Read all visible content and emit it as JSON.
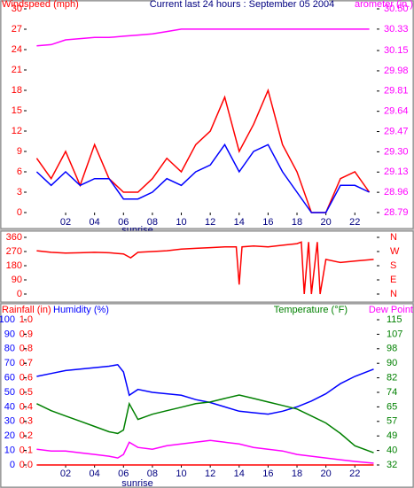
{
  "chart_data": [
    {
      "type": "line",
      "title": "Current last 24 hours : September 05 2004",
      "annotation": "sunrise",
      "xlim": [
        -0.7,
        23.7
      ],
      "xticks": [
        {
          "value": 2,
          "label": "02"
        },
        {
          "value": 4,
          "label": "04"
        },
        {
          "value": 6,
          "label": "06"
        },
        {
          "value": 8,
          "label": "08"
        },
        10,
        12,
        14,
        16,
        18,
        20,
        22
      ],
      "ylim": [
        0,
        30
      ],
      "yticks": [
        0,
        3,
        6,
        9,
        12,
        15,
        18,
        21,
        24,
        27,
        30
      ],
      "y2lim": [
        28.79,
        30.5
      ],
      "y2ticks": [
        28.79,
        28.96,
        29.13,
        {
          "value": 29.3,
          "label": "29.30"
        },
        29.47,
        29.64,
        29.81,
        29.98,
        30.15,
        30.33,
        {
          "value": 30.5,
          "label": "30.50"
        }
      ],
      "x": [
        0,
        1,
        2,
        3,
        4,
        5,
        6,
        7,
        8,
        9,
        10,
        11,
        12,
        13,
        14,
        15,
        16,
        17,
        18,
        19,
        20,
        21,
        22,
        23
      ],
      "series": [
        {
          "name": "Windspeed (mph)",
          "color": "#ff0000",
          "values": [
            8,
            5,
            9,
            4,
            10,
            5,
            3,
            3,
            5,
            8,
            6,
            10,
            12,
            17,
            9,
            13,
            18,
            10,
            6,
            0,
            0,
            5,
            6,
            3
          ]
        },
        {
          "color": "#0000ff",
          "values": [
            6,
            4,
            6,
            4,
            5,
            5,
            2,
            2,
            3,
            5,
            4,
            6,
            7,
            10,
            6,
            9,
            10,
            6,
            3,
            0,
            0,
            4,
            4,
            3
          ]
        },
        {
          "name": "arometer (in.)",
          "color": "#ff00ff",
          "axis": "y2",
          "values": [
            30.19,
            30.2,
            30.24,
            30.25,
            30.26,
            30.26,
            30.27,
            30.28,
            30.29,
            30.31,
            30.33,
            30.33,
            30.33,
            30.33,
            30.33,
            30.33,
            30.33,
            30.33,
            30.33,
            30.33,
            30.33,
            30.33,
            30.33,
            30.33
          ]
        }
      ]
    },
    {
      "type": "line",
      "xlim": [
        -0.7,
        23.7
      ],
      "ylim": [
        0,
        360
      ],
      "yticks": [
        0,
        90,
        180,
        270,
        360
      ],
      "y2lim": [
        0,
        360
      ],
      "y2ticks": [
        {
          "value": 0,
          "label": "N"
        },
        {
          "value": 90,
          "label": "E"
        },
        {
          "value": 180,
          "label": "S"
        },
        {
          "value": 270,
          "label": "W"
        },
        {
          "value": 360,
          "label": "N"
        }
      ],
      "x": [
        0,
        1,
        2,
        3,
        4,
        5,
        6,
        6.5,
        7,
        8,
        9,
        10,
        11,
        12,
        13,
        13.8,
        14,
        14.2,
        15,
        16,
        17,
        18,
        18.3,
        18.5,
        18.8,
        19,
        19.4,
        19.6,
        20,
        21,
        22,
        23.3
      ],
      "series": [
        {
          "color": "#ff0000",
          "values": [
            275,
            265,
            260,
            262,
            265,
            262,
            255,
            230,
            265,
            270,
            275,
            285,
            290,
            295,
            300,
            300,
            60,
            300,
            305,
            300,
            310,
            320,
            330,
            0,
            330,
            0,
            330,
            0,
            220,
            200,
            210,
            220
          ]
        }
      ]
    },
    {
      "type": "line",
      "annotation": "sunrise",
      "xlim": [
        -0.7,
        23.7
      ],
      "xticks": [
        {
          "value": 2,
          "label": "02"
        },
        {
          "value": 4,
          "label": "04"
        },
        {
          "value": 6,
          "label": "06"
        },
        {
          "value": 8,
          "label": "08"
        },
        10,
        12,
        14,
        16,
        18,
        20,
        22
      ],
      "ylim": [
        0,
        100
      ],
      "yticks": [
        0,
        10,
        20,
        30,
        40,
        50,
        60,
        70,
        80,
        90,
        100
      ],
      "y3lim": [
        0,
        1
      ],
      "y3ticks": [
        {
          "value": 0,
          "label": "0.0"
        },
        0.1,
        0.2,
        0.3,
        0.4,
        0.5,
        0.6,
        0.7,
        0.8,
        0.9,
        {
          "value": 1,
          "label": "1.0"
        }
      ],
      "y2lim": [
        32,
        115
      ],
      "y2ticks": [
        32,
        {
          "value": 40.3,
          "label": "40"
        },
        {
          "value": 48.6,
          "label": "49"
        },
        {
          "value": 56.9,
          "label": "57"
        },
        {
          "value": 65.2,
          "label": "65"
        },
        {
          "value": 73.5,
          "label": "74"
        },
        {
          "value": 81.8,
          "label": "82"
        },
        {
          "value": 90.1,
          "label": "90"
        },
        {
          "value": 98.4,
          "label": "98"
        },
        {
          "value": 106.7,
          "label": "107"
        },
        115
      ],
      "x": [
        0,
        1,
        2,
        3,
        4,
        5,
        5.6,
        6,
        6.4,
        7,
        8,
        9,
        10,
        11,
        12,
        13,
        14,
        15,
        16,
        17,
        18,
        19,
        20,
        21,
        22,
        23.3
      ],
      "series": [
        {
          "name": "Rainfall (in)",
          "color": "#ff0000",
          "axis": "y3",
          "values": [
            0,
            0,
            0,
            0,
            0,
            0,
            0,
            0,
            0,
            0,
            0,
            0,
            0,
            0,
            0,
            0,
            0,
            0,
            0,
            0,
            0,
            0,
            0,
            0,
            0,
            0
          ]
        },
        {
          "name": "Humidity (%)",
          "color": "#0000ff",
          "values": [
            61,
            63,
            65,
            66,
            67,
            68,
            69,
            64,
            48,
            52,
            50,
            49,
            48,
            45,
            43,
            40,
            37,
            36,
            35,
            37,
            40,
            44,
            49,
            56,
            61,
            66
          ]
        },
        {
          "name": "Temperature (°F)",
          "color": "#008000",
          "axis": "y2",
          "values": [
            67,
            63,
            60,
            57,
            54,
            51,
            50,
            52,
            67,
            58,
            61,
            63,
            65,
            67,
            68,
            70,
            72,
            70,
            68,
            66,
            64,
            60,
            56,
            50,
            43,
            39
          ]
        },
        {
          "name": "Dew Point",
          "color": "#ff00ff",
          "axis": "y2",
          "values": [
            41,
            40,
            40,
            39,
            38,
            37,
            36,
            38,
            45,
            42,
            41,
            43,
            44,
            45,
            46,
            45,
            44,
            42,
            41,
            40,
            38,
            37,
            36,
            35,
            34,
            33
          ]
        }
      ]
    }
  ]
}
